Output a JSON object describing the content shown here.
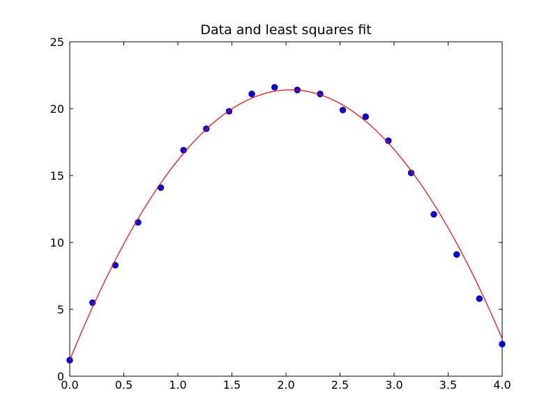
{
  "chart_data": {
    "type": "scatter",
    "title": "Data and least squares fit",
    "xlabel": "",
    "ylabel": "",
    "xlim": [
      0.0,
      4.0
    ],
    "ylim": [
      0,
      25
    ],
    "x_ticks": [
      "0.0",
      "0.5",
      "1.0",
      "1.5",
      "2.0",
      "2.5",
      "3.0",
      "3.5",
      "4.0"
    ],
    "y_ticks": [
      "0",
      "5",
      "10",
      "15",
      "20",
      "25"
    ],
    "grid": false,
    "legend": "none",
    "series": [
      {
        "kind": "points",
        "color": "#0000ff",
        "edge_color": "#00006b",
        "x": [
          0.0,
          0.211,
          0.421,
          0.632,
          0.842,
          1.053,
          1.263,
          1.474,
          1.684,
          1.895,
          2.105,
          2.316,
          2.526,
          2.737,
          2.947,
          3.158,
          3.368,
          3.579,
          3.789,
          4.0
        ],
        "y": [
          1.2,
          5.5,
          8.3,
          11.5,
          14.1,
          16.9,
          18.5,
          19.8,
          21.1,
          21.6,
          21.4,
          21.1,
          19.9,
          19.4,
          17.6,
          15.2,
          12.1,
          9.1,
          5.8,
          2.4
        ]
      },
      {
        "kind": "fit-curve",
        "color": "#ff0000",
        "model": "quadratic",
        "coefficients": [
          1.2,
          19.8,
          -4.85
        ],
        "x_range": [
          0.0,
          4.0
        ]
      }
    ]
  }
}
